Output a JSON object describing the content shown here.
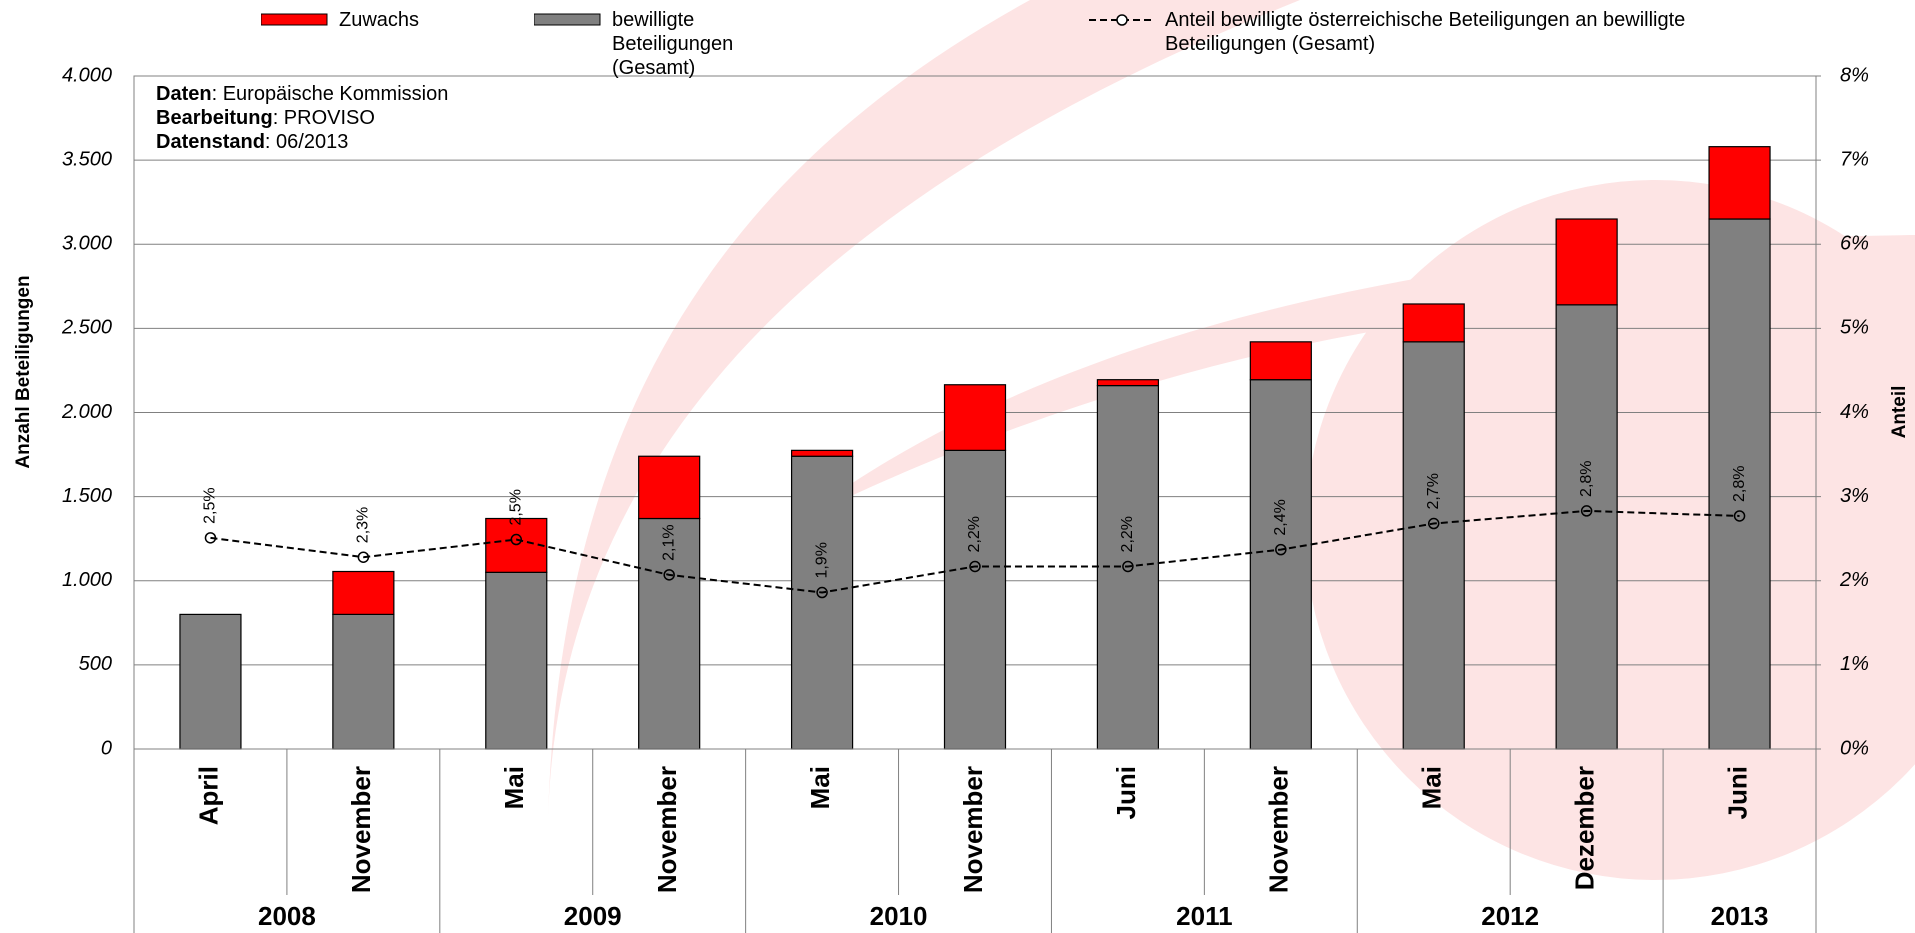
{
  "chart_data": {
    "type": "bar",
    "stacked": true,
    "y_label": "Anzahl Beteiligungen",
    "y2_label": "Anteil",
    "annotations": [
      {
        "label": "Daten",
        "text": ": Europäische Kommission"
      },
      {
        "label": "Bearbeitung",
        "text": ": PROVISO"
      },
      {
        "label": "Datenstand",
        "text": ": 06/2013"
      }
    ],
    "groups": [
      {
        "label": "2008",
        "categories": [
          "April",
          "November"
        ]
      },
      {
        "label": "2009",
        "categories": [
          "Mai",
          "November"
        ]
      },
      {
        "label": "2010",
        "categories": [
          "Mai",
          "November"
        ]
      },
      {
        "label": "2011",
        "categories": [
          "Juni",
          "November"
        ]
      },
      {
        "label": "2012",
        "categories": [
          "Mai",
          "Dezember"
        ]
      },
      {
        "label": "2013",
        "categories": [
          "Juni"
        ]
      }
    ],
    "series": [
      {
        "name": "Zuwachs",
        "color": "#ff0000",
        "values": [
          0,
          255,
          320,
          370,
          35,
          390,
          35,
          225,
          225,
          510,
          430
        ]
      },
      {
        "name": "bewilligte Beteiligungen (Gesamt)",
        "color": "#808080",
        "values": [
          800,
          800,
          1050,
          1370,
          1740,
          1775,
          2160,
          2195,
          2420,
          2640,
          3150
        ]
      },
      {
        "name": "Anteil bewilligte österreichische Beteiligungen an bewilligte Beteiligungen (Gesamt)",
        "type": "line",
        "axis": "y2",
        "color": "#000000",
        "values": [
          2.51,
          2.28,
          2.49,
          2.07,
          1.86,
          2.17,
          2.17,
          2.37,
          2.68,
          2.83,
          2.77
        ],
        "value_labels": [
          "2,5%",
          "2,3%",
          "2,5%",
          "2,1%",
          "1,9%",
          "2,2%",
          "2,2%",
          "2,4%",
          "2,7%",
          "2,8%",
          "2,8%"
        ]
      }
    ],
    "ylim": [
      0,
      4000
    ],
    "yticks": [
      0,
      500,
      {
        "value": 1000,
        "label": "1.000"
      },
      {
        "value": 1500,
        "label": "1.500"
      },
      {
        "value": 2000,
        "label": "2.000"
      },
      {
        "value": 2500,
        "label": "2.500"
      },
      {
        "value": 3000,
        "label": "3.000"
      },
      {
        "value": 3500,
        "label": "3.500"
      },
      {
        "value": 4000,
        "label": "4.000"
      }
    ],
    "y2lim": [
      0,
      8
    ],
    "y2ticks": [
      {
        "value": 0,
        "label": "0%"
      },
      {
        "value": 1,
        "label": "1%"
      },
      {
        "value": 2,
        "label": "2%"
      },
      {
        "value": 3,
        "label": "3%"
      },
      {
        "value": 4,
        "label": "4%"
      },
      {
        "value": 5,
        "label": "5%"
      },
      {
        "value": 6,
        "label": "6%"
      },
      {
        "value": 7,
        "label": "7%"
      },
      {
        "value": 8,
        "label": "8%"
      }
    ],
    "grid": true
  }
}
